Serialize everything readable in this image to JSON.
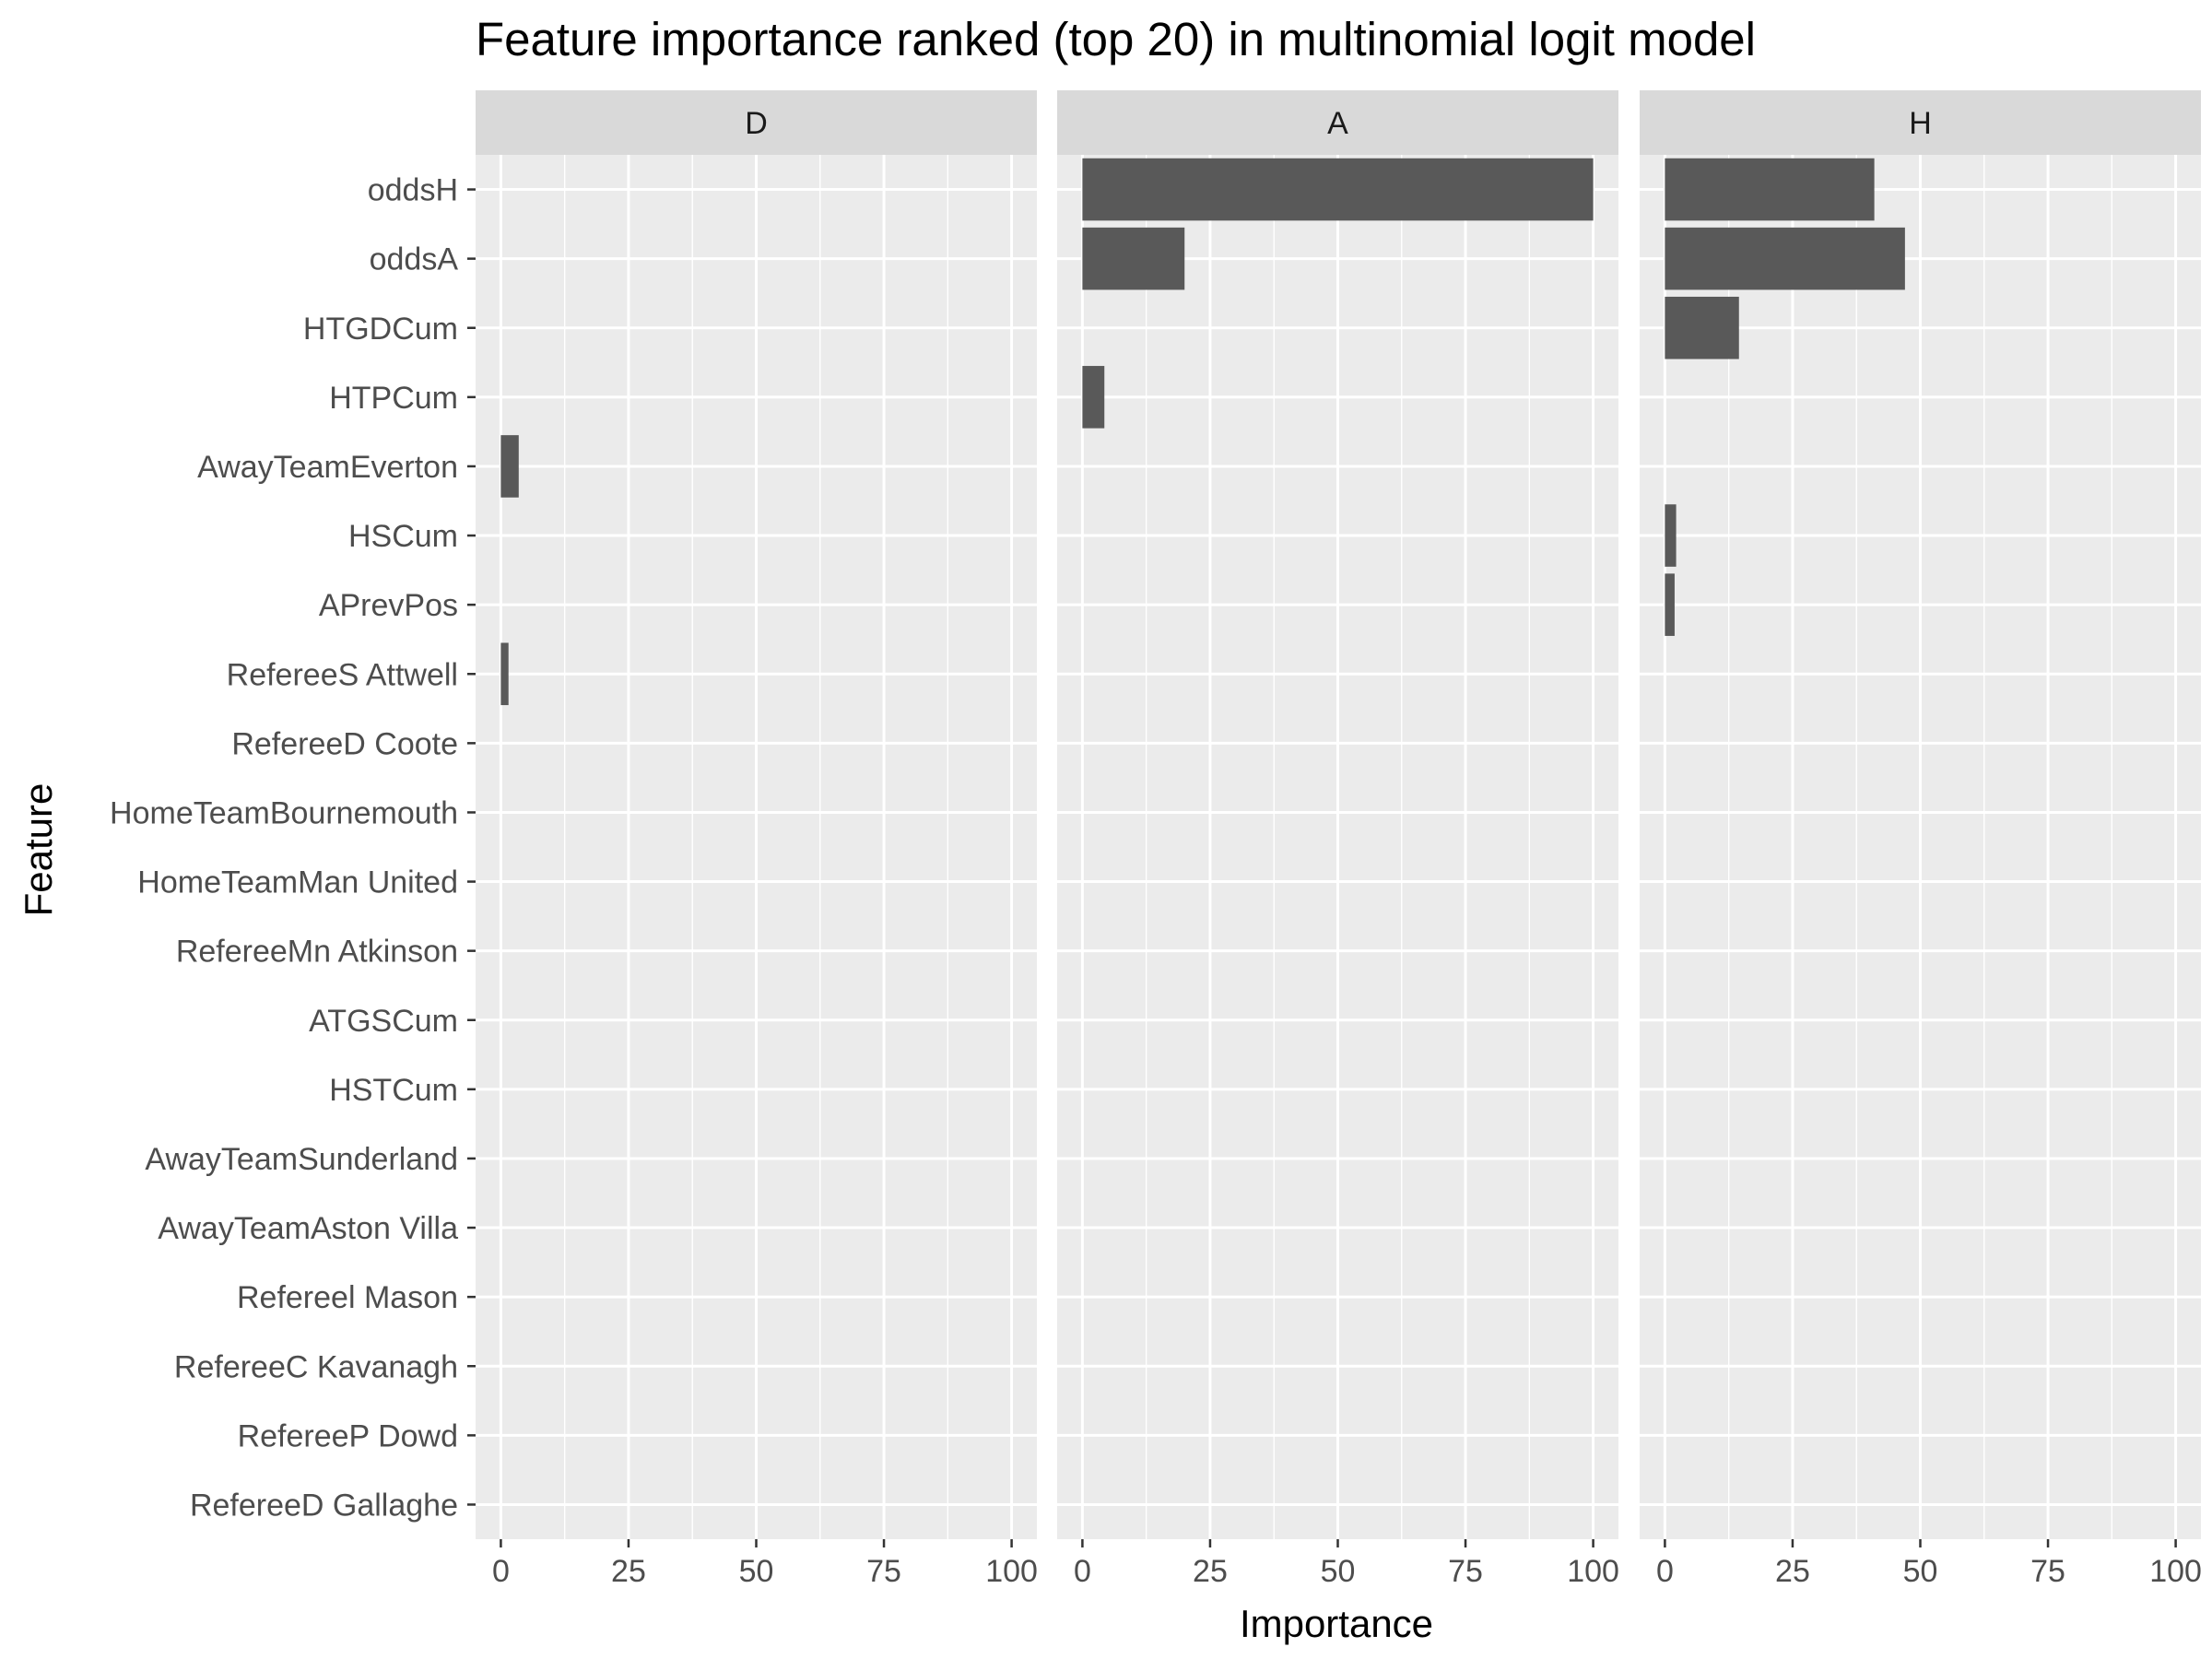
{
  "chart_data": {
    "type": "bar",
    "orientation": "horizontal",
    "title": "Feature importance ranked (top 20) in multinomial logit model",
    "xlabel": "Importance",
    "ylabel": "Feature",
    "xlim": [
      0,
      100
    ],
    "x_ticks": [
      0,
      25,
      50,
      75,
      100
    ],
    "grid": true,
    "categories": [
      "oddsH",
      "oddsA",
      "HTGDCum",
      "HTPCum",
      "AwayTeamEverton",
      "HSCum",
      "APrevPos",
      "RefereeS Attwell",
      "RefereeD Coote",
      "HomeTeamBournemouth",
      "HomeTeamMan United",
      "RefereeMn Atkinson",
      "ATGSCum",
      "HSTCum",
      "AwayTeamSunderland",
      "AwayTeamAston Villa",
      "Refereel Mason",
      "RefereeC Kavanagh",
      "RefereeP Dowd",
      "RefereeD Gallaghe"
    ],
    "panels": [
      {
        "name": "D",
        "values": [
          0,
          0,
          0,
          0,
          3.5,
          0,
          0,
          1.5,
          0,
          0,
          0,
          0,
          0,
          0,
          0,
          0,
          0,
          0,
          0,
          0
        ]
      },
      {
        "name": "A",
        "values": [
          100,
          20,
          0,
          4.3,
          0,
          0,
          0,
          0,
          0,
          0,
          0,
          0,
          0,
          0,
          0,
          0,
          0,
          0,
          0,
          0
        ]
      },
      {
        "name": "H",
        "values": [
          41,
          47,
          14.5,
          0,
          0,
          2.2,
          1.9,
          0,
          0,
          0,
          0,
          0,
          0,
          0,
          0,
          0,
          0,
          0,
          0,
          0
        ]
      }
    ],
    "colors": {
      "bar": "#595959",
      "panel_bg": "#ebebeb",
      "strip_bg": "#d9d9d9",
      "grid": "#ffffff"
    }
  }
}
